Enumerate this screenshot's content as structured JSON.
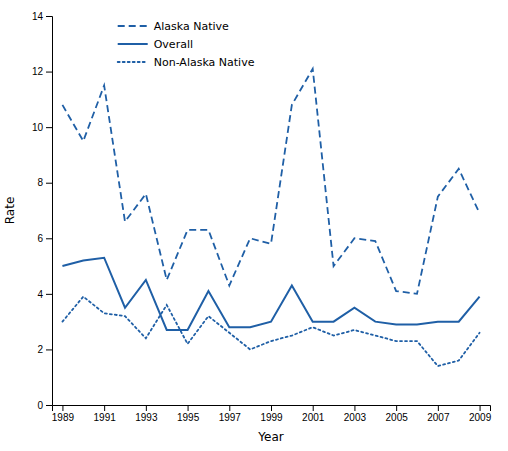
{
  "chart_data": {
    "type": "line",
    "x": [
      1989,
      1990,
      1991,
      1992,
      1993,
      1994,
      1995,
      1996,
      1997,
      1998,
      1999,
      2000,
      2001,
      2002,
      2003,
      2004,
      2005,
      2006,
      2007,
      2008,
      2009
    ],
    "series": [
      {
        "name": "Alaska Native",
        "color": "#1f5fa6",
        "line_style": "dashed",
        "values": [
          10.8,
          9.5,
          11.5,
          6.6,
          7.6,
          4.5,
          6.3,
          6.3,
          4.3,
          6.0,
          5.8,
          10.8,
          12.1,
          5.0,
          6.0,
          5.9,
          4.1,
          4.0,
          7.5,
          8.5,
          6.9
        ]
      },
      {
        "name": "Overall",
        "color": "#1f5fa6",
        "line_style": "solid",
        "values": [
          5.0,
          5.2,
          5.3,
          3.5,
          4.5,
          2.7,
          2.7,
          4.1,
          2.8,
          2.8,
          3.0,
          4.3,
          3.0,
          3.0,
          3.5,
          3.0,
          2.9,
          2.9,
          3.0,
          3.0,
          3.9
        ]
      },
      {
        "name": "Non-Alaska Native",
        "color": "#1f5fa6",
        "line_style": "dotted",
        "values": [
          3.0,
          3.9,
          3.3,
          3.2,
          2.4,
          3.6,
          2.2,
          3.2,
          2.6,
          2.0,
          2.3,
          2.5,
          2.8,
          2.5,
          2.7,
          2.5,
          2.3,
          2.3,
          1.4,
          1.6,
          2.6
        ]
      }
    ],
    "xlabel": "Year",
    "ylabel": "Rate",
    "xlim": [
      1988.5,
      2009.5
    ],
    "xticks": [
      1989,
      1991,
      1993,
      1995,
      1997,
      1999,
      2001,
      2003,
      2005,
      2007,
      2009
    ],
    "ylim": [
      0,
      14
    ],
    "yticks": [
      0,
      2,
      4,
      6,
      8,
      10,
      12,
      14
    ],
    "legend": "upper left"
  }
}
